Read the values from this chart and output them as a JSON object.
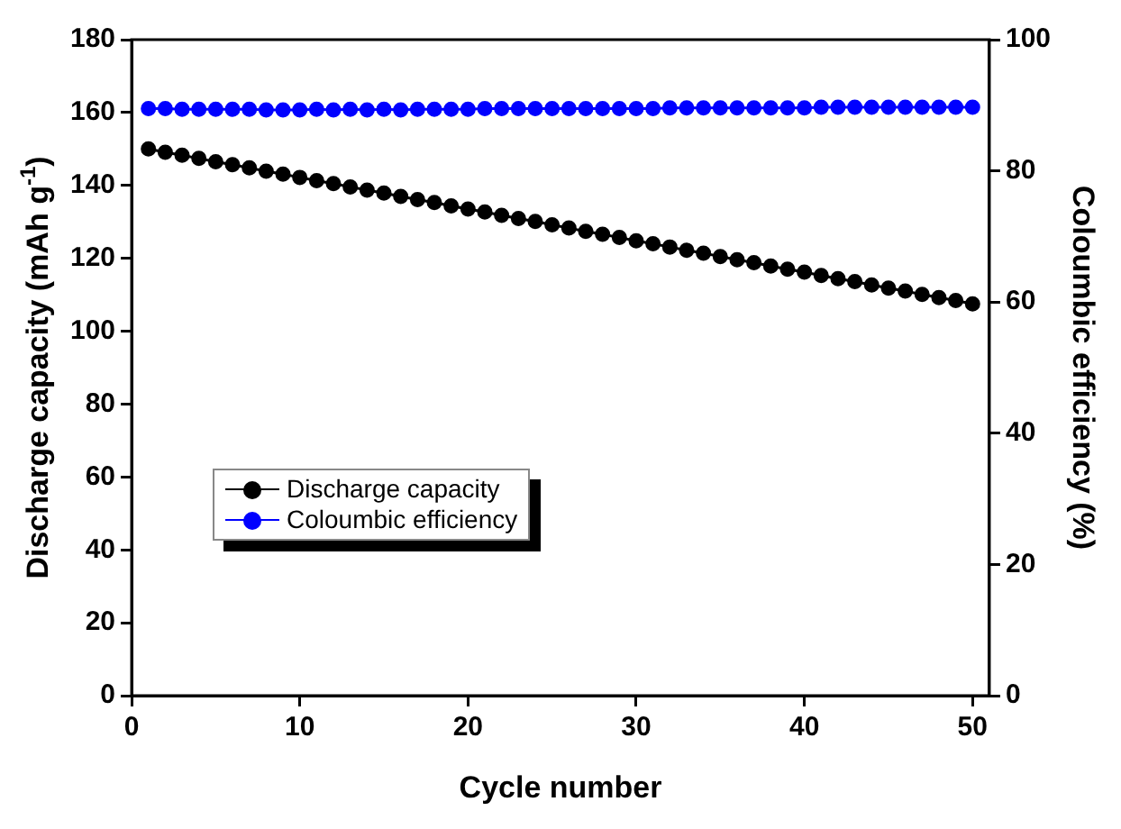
{
  "chart_data": {
    "type": "line",
    "xlabel": "Cycle number",
    "ylabel": "Discharge capacity (mAh g$^{-1}$)",
    "y2label": "Coloumbic efficiency (%)",
    "x": [
      1,
      2,
      3,
      4,
      5,
      6,
      7,
      8,
      9,
      10,
      11,
      12,
      13,
      14,
      15,
      16,
      17,
      18,
      19,
      20,
      21,
      22,
      23,
      24,
      25,
      26,
      27,
      28,
      29,
      30,
      31,
      32,
      33,
      34,
      35,
      36,
      37,
      38,
      39,
      40,
      41,
      42,
      43,
      44,
      45,
      46,
      47,
      48,
      49,
      50
    ],
    "series": [
      {
        "name": "Discharge capacity",
        "color": "#000000",
        "values": [
          150,
          149.1,
          148.3,
          147.4,
          146.5,
          145.7,
          144.8,
          143.9,
          143.1,
          142.2,
          141.3,
          140.5,
          139.6,
          138.7,
          137.9,
          137,
          136.1,
          135.3,
          134.4,
          133.5,
          132.7,
          131.8,
          130.9,
          130.1,
          129.2,
          128.3,
          127.4,
          126.6,
          125.7,
          124.8,
          124,
          123.1,
          122.2,
          121.4,
          120.5,
          119.6,
          118.8,
          117.9,
          117,
          116.2,
          115.3,
          114.4,
          113.6,
          112.7,
          111.8,
          111,
          110.1,
          109.2,
          108.4,
          107.5
        ]
      },
      {
        "name": "Coloumbic efficiency",
        "color": "#0000ff",
        "axis": "y2",
        "values": [
          89.5,
          89.5,
          89.4,
          89.4,
          89.4,
          89.4,
          89.4,
          89.3,
          89.3,
          89.3,
          89.4,
          89.3,
          89.4,
          89.3,
          89.4,
          89.3,
          89.4,
          89.4,
          89.4,
          89.4,
          89.5,
          89.5,
          89.5,
          89.5,
          89.5,
          89.5,
          89.5,
          89.5,
          89.5,
          89.5,
          89.5,
          89.6,
          89.6,
          89.6,
          89.6,
          89.6,
          89.6,
          89.6,
          89.6,
          89.6,
          89.7,
          89.7,
          89.7,
          89.7,
          89.7,
          89.7,
          89.7,
          89.7,
          89.7,
          89.7
        ]
      }
    ],
    "xlim": [
      0,
      51
    ],
    "xticks": [
      0,
      10,
      20,
      30,
      40,
      50
    ],
    "ylim": [
      0,
      180
    ],
    "yticks": [
      0,
      20,
      40,
      60,
      80,
      100,
      120,
      140,
      160,
      180
    ],
    "y2lim": [
      0,
      100
    ],
    "y2ticks": [
      0,
      20,
      40,
      60,
      80,
      100
    ],
    "grid": false,
    "legend": "left",
    "marker": "circle",
    "line_style": "solid"
  }
}
